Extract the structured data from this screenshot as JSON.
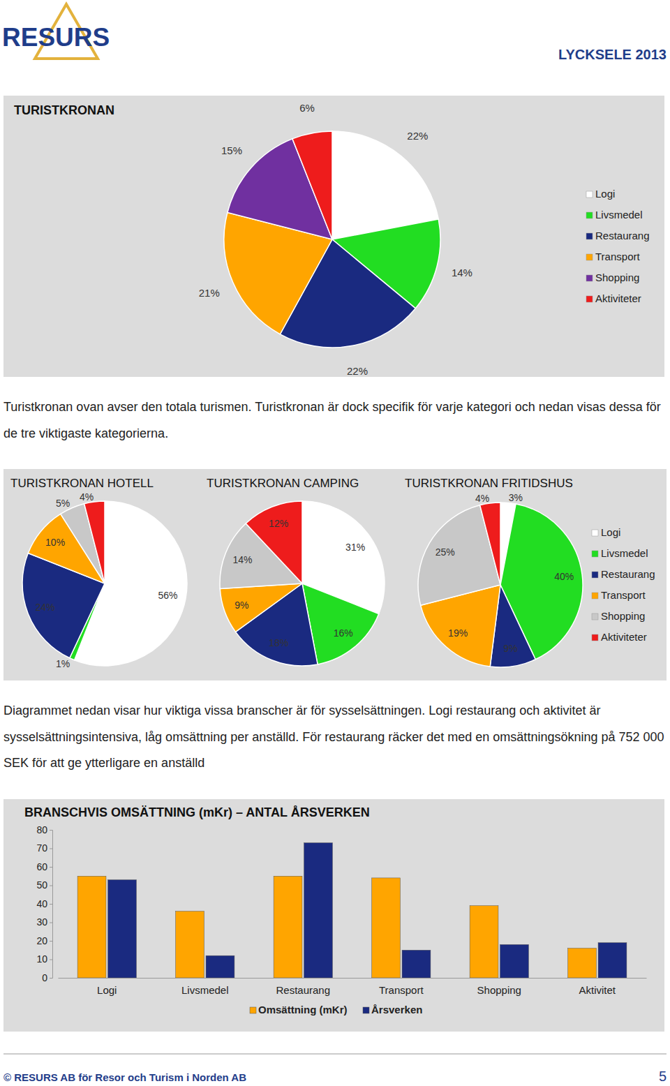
{
  "header": {
    "logo": "RESURS",
    "title": "LYCKSELE 2013"
  },
  "paragraphs": [
    "Turistkronan ovan avser den totala turismen. Turistkronan är dock specifik för varje kategori och nedan visas dessa för de tre viktigaste kategorierna.",
    "Diagrammet nedan visar hur viktiga vissa branscher är för sysselsättningen. Logi restaurang och aktivitet är sysselsättningsintensiva, låg omsättning per anställd. För restaurang räcker det med en omsättningsökning på 752 000 SEK för att ge ytterligare en anställd"
  ],
  "chart_data": [
    {
      "type": "pie",
      "title": "TURISTKRONAN",
      "categories": [
        "Logi",
        "Livsmedel",
        "Restaurang",
        "Transport",
        "Shopping",
        "Aktiviteter"
      ],
      "values": [
        22,
        14,
        22,
        21,
        15,
        6
      ],
      "value_labels": [
        "22%",
        "14%",
        "22%",
        "21%",
        "15%",
        "6%"
      ],
      "colors": [
        "#ffffff",
        "#22dd22",
        "#1a2a80",
        "#ffa500",
        "#7030a0",
        "#ee1c1c"
      ],
      "data_labels": true,
      "legend": "right"
    },
    {
      "type": "pie",
      "title": "TURISTKRONAN HOTELL",
      "categories": [
        "Logi",
        "Livsmedel",
        "Restaurang",
        "Transport",
        "Shopping",
        "Aktiviteter"
      ],
      "values": [
        56,
        1,
        24,
        10,
        5,
        4
      ],
      "value_labels": [
        "56%",
        "1%",
        "24%",
        "10%",
        "5%",
        "4%"
      ],
      "colors": [
        "#ffffff",
        "#22dd22",
        "#1a2a80",
        "#ffa500",
        "#c8c8c8",
        "#ee1c1c"
      ],
      "data_labels": true
    },
    {
      "type": "pie",
      "title": "TURISTKRONAN CAMPING",
      "categories": [
        "Logi",
        "Livsmedel",
        "Restaurang",
        "Transport",
        "Shopping",
        "Aktiviteter"
      ],
      "values": [
        31,
        16,
        18,
        9,
        14,
        12
      ],
      "value_labels": [
        "31%",
        "16%",
        "18%",
        "9%",
        "14%",
        "12%"
      ],
      "colors": [
        "#ffffff",
        "#22dd22",
        "#1a2a80",
        "#ffa500",
        "#c8c8c8",
        "#ee1c1c"
      ],
      "data_labels": true
    },
    {
      "type": "pie",
      "title": "TURISTKRONAN FRITIDSHUS",
      "categories": [
        "Logi",
        "Livsmedel",
        "Restaurang",
        "Transport",
        "Shopping",
        "Aktiviteter"
      ],
      "values": [
        3,
        40,
        9,
        19,
        25,
        4
      ],
      "value_labels": [
        "3%",
        "40%",
        "9%",
        "19%",
        "25%",
        "4%"
      ],
      "colors": [
        "#ffffff",
        "#22dd22",
        "#1a2a80",
        "#ffa500",
        "#c8c8c8",
        "#ee1c1c"
      ],
      "data_labels": true,
      "legend": "right"
    },
    {
      "type": "bar",
      "title": "BRANSCHVIS OMSÄTTNING (mKr) – ANTAL ÅRSVERKEN",
      "categories": [
        "Logi",
        "Livsmedel",
        "Restaurang",
        "Transport",
        "Shopping",
        "Aktivitet"
      ],
      "series": [
        {
          "name": "Omsättning (mKr)",
          "color": "#ffa500",
          "values": [
            55,
            36,
            55,
            54,
            39,
            16
          ]
        },
        {
          "name": "Årsverken",
          "color": "#1a2a80",
          "values": [
            53,
            12,
            73,
            15,
            18,
            19
          ]
        }
      ],
      "ylim": [
        0,
        80
      ],
      "yticks": [
        0,
        10,
        20,
        30,
        40,
        50,
        60,
        70,
        80
      ],
      "grid": false,
      "legend": "bottom"
    }
  ],
  "footer": {
    "text": "© RESURS AB för Resor och Turism i Norden AB",
    "page": "5"
  }
}
